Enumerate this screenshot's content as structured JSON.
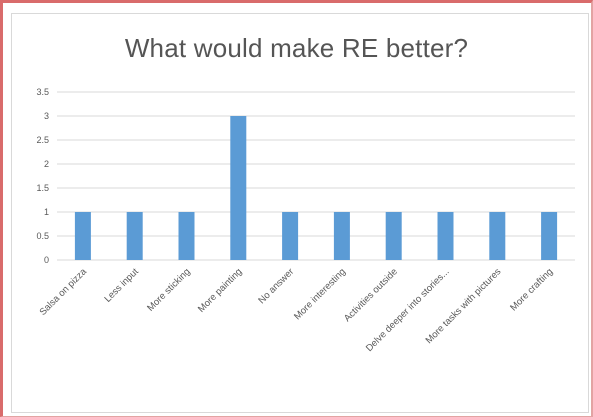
{
  "chart_data": {
    "type": "bar",
    "title": "What would make RE better?",
    "categories": [
      "Salsa on pizza",
      "Less input",
      "More sticking",
      "More painting",
      "No answer",
      "More interesting",
      "Activities outside",
      "Delve deeper into stories...",
      "More tasks with pictures",
      "More crafting"
    ],
    "values": [
      1,
      1,
      1,
      3,
      1,
      1,
      1,
      1,
      1,
      1
    ],
    "yticks": [
      "0",
      "0.5",
      "1",
      "1.5",
      "2",
      "2.5",
      "3",
      "3.5"
    ],
    "ylim": [
      0,
      3.5
    ],
    "grid": true,
    "bar_color": "#5b9bd5",
    "grid_color": "#d9d9d9"
  }
}
